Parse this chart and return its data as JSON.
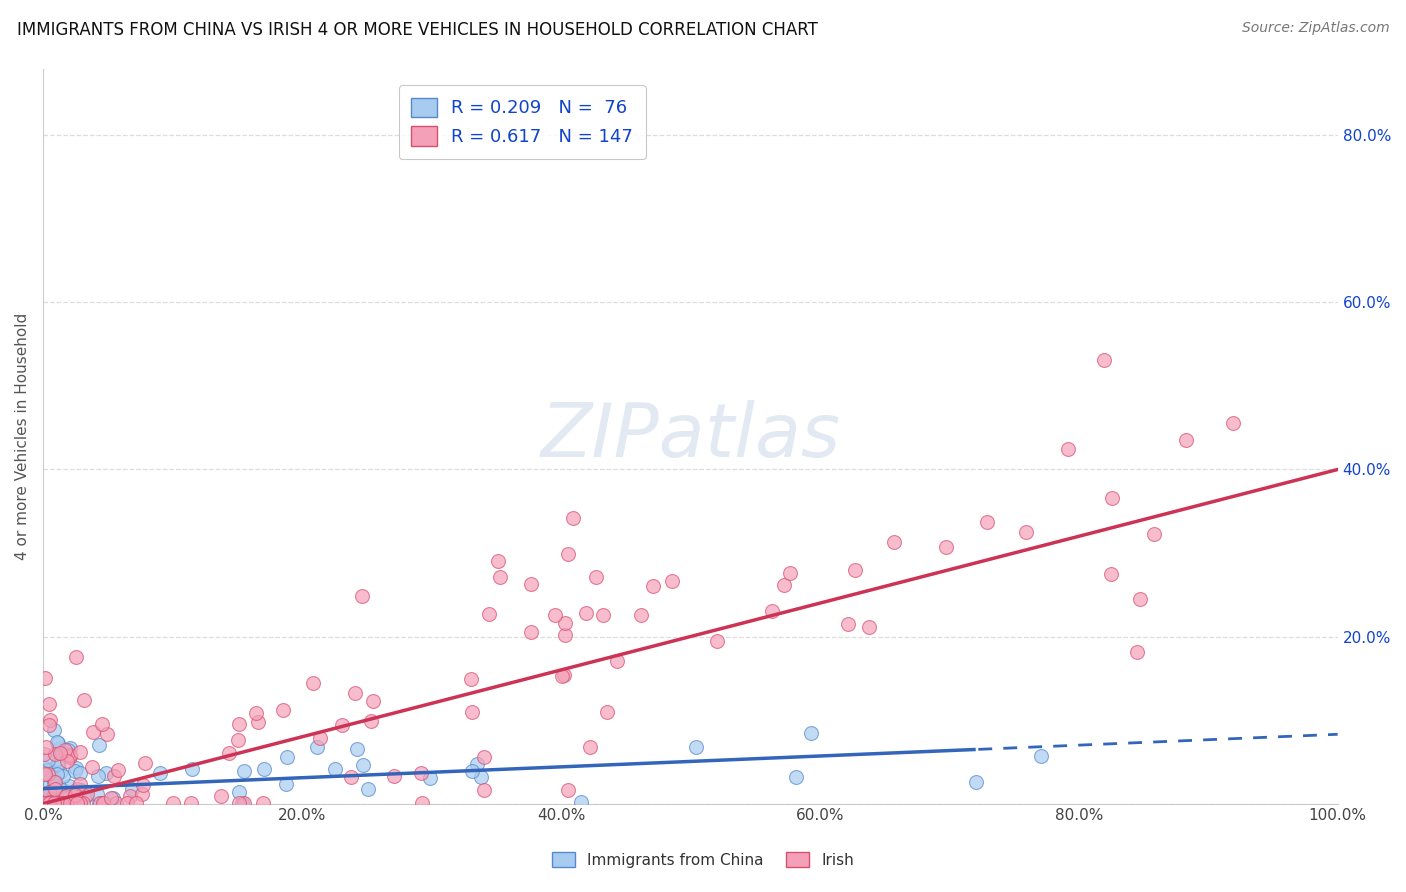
{
  "title": "IMMIGRANTS FROM CHINA VS IRISH 4 OR MORE VEHICLES IN HOUSEHOLD CORRELATION CHART",
  "source": "Source: ZipAtlas.com",
  "ylabel": "4 or more Vehicles in Household",
  "legend_label_china": "Immigrants from China",
  "legend_label_irish": "Irish",
  "china_R": "0.209",
  "china_N": "76",
  "irish_R": "0.617",
  "irish_N": "147",
  "china_face_color": "#a8ccf0",
  "irish_face_color": "#f4a0b8",
  "china_edge_color": "#5588cc",
  "irish_edge_color": "#d85070",
  "china_line_color": "#3366bb",
  "irish_line_color": "#cc3355",
  "watermark_color": "#d0d8e8",
  "watermark": "ZIPatlas",
  "xlim": [
    0.0,
    1.0
  ],
  "ylim": [
    0.0,
    0.88
  ],
  "x_ticks": [
    0.0,
    0.2,
    0.4,
    0.6,
    0.8,
    1.0
  ],
  "x_tick_labels": [
    "0.0%",
    "20.0%",
    "40.0%",
    "60.0%",
    "80.0%",
    "100.0%"
  ],
  "right_y_ticks": [
    0.2,
    0.4,
    0.6,
    0.8
  ],
  "right_y_tick_labels": [
    "20.0%",
    "40.0%",
    "60.0%",
    "80.0%"
  ],
  "legend_R_N_color": "#1144cc",
  "title_color": "#111111",
  "source_color": "#777777",
  "grid_color": "#dddddd",
  "tick_label_color": "#444444"
}
